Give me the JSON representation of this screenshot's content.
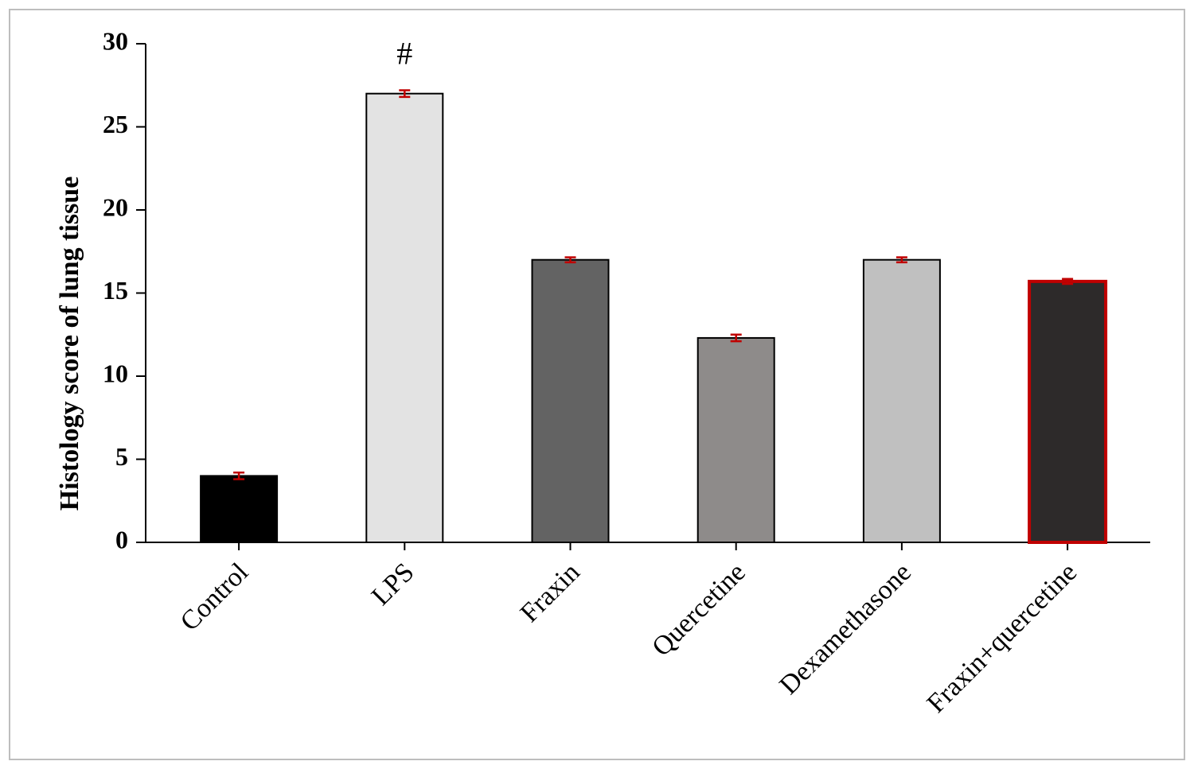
{
  "chart_data": {
    "type": "bar",
    "y_label": "Histology score of lung tissue",
    "categories": [
      "Control",
      "LPS",
      "Fraxin",
      "Quercetine",
      "Dexamethasone",
      "Fraxin+quercetine"
    ],
    "values": [
      4,
      27,
      17,
      12.3,
      17,
      15.7
    ],
    "errors": [
      0.2,
      0.2,
      0.15,
      0.2,
      0.15,
      0.15
    ],
    "colors": [
      "#000000",
      "#e3e3e3",
      "#636363",
      "#8e8b8a",
      "#c0c0c0",
      "#2d2a2a"
    ],
    "edge_colors": [
      "#000000",
      "#000000",
      "#000000",
      "#000000",
      "#000000",
      "#c00000"
    ],
    "error_color": "#c00000",
    "annotations": [
      {
        "category": "LPS",
        "text": "#"
      }
    ],
    "ylim": [
      0,
      30
    ],
    "yticks": [
      0,
      5,
      10,
      15,
      20,
      25,
      30
    ],
    "grid": false
  }
}
